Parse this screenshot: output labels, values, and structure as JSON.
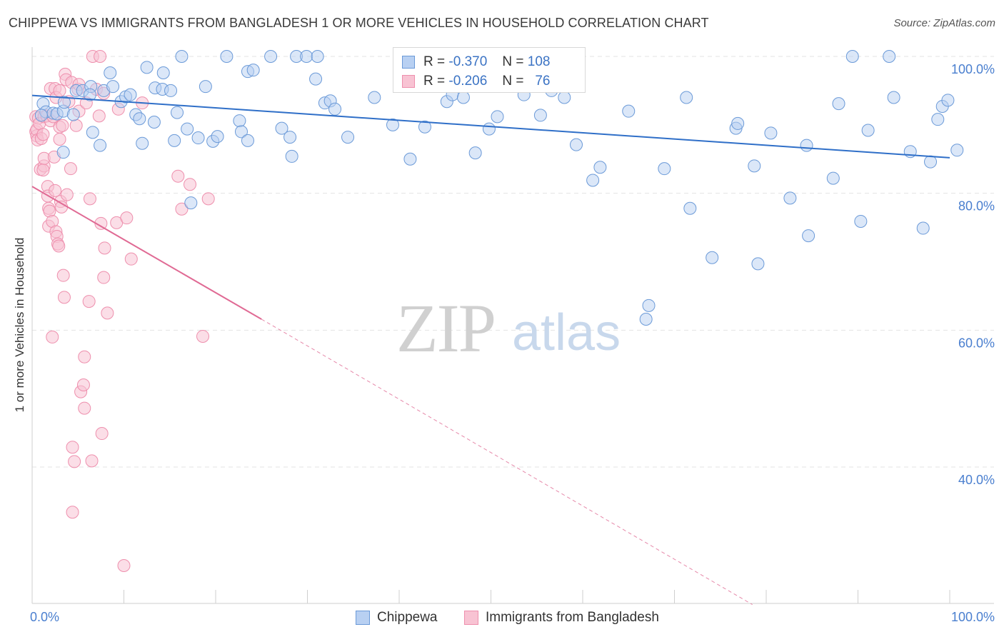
{
  "header": {
    "title": "CHIPPEWA VS IMMIGRANTS FROM BANGLADESH 1 OR MORE VEHICLES IN HOUSEHOLD CORRELATION CHART",
    "source": "Source: ZipAtlas.com"
  },
  "watermark": {
    "zip": "ZIP",
    "atlas": "atlas"
  },
  "legend": {
    "rows": [
      {
        "r_label": "R =",
        "r_value": "-0.370",
        "n_label": "N =",
        "n_value": "108"
      },
      {
        "r_label": "R =",
        "r_value": "-0.206",
        "n_label": "N =",
        "n_value": "76"
      }
    ]
  },
  "colors": {
    "chippewa_fill": "#b8d0f2",
    "chippewa_stroke": "#6b9ad8",
    "chippewa_line": "#2f6fc8",
    "bangladesh_fill": "#f8c3d3",
    "bangladesh_stroke": "#ee8fad",
    "bangladesh_line": "#e06a94",
    "tick_label": "#4a7fcf",
    "grid": "#e3e3e3"
  },
  "chart_data": {
    "type": "scatter",
    "xlabel": "",
    "ylabel": "1 or more Vehicles in Household",
    "xlim": [
      0,
      100
    ],
    "ylim": [
      20,
      100
    ],
    "x_tick_labels": [
      "0.0%",
      "100.0%"
    ],
    "y_ticks": [
      40,
      60,
      80,
      100
    ],
    "y_tick_labels": [
      "40.0%",
      "60.0%",
      "80.0%",
      "100.0%"
    ],
    "grid": true,
    "legend_position": "bottom",
    "series": [
      {
        "name": "Chippewa",
        "trend": {
          "x": [
            0,
            100
          ],
          "y": [
            94.3,
            85.2
          ]
        },
        "points": [
          [
            1.2,
            93.1
          ],
          [
            1.5,
            91.9
          ],
          [
            2.3,
            91.7
          ],
          [
            1.0,
            91.4
          ],
          [
            2.7,
            91.6
          ],
          [
            3.4,
            92.0
          ],
          [
            3.5,
            93.3
          ],
          [
            4.5,
            91.5
          ],
          [
            4.8,
            95.0
          ],
          [
            5.5,
            95.0
          ],
          [
            3.4,
            86.0
          ],
          [
            6.4,
            95.6
          ],
          [
            6.3,
            94.4
          ],
          [
            6.6,
            88.9
          ],
          [
            7.4,
            87.0
          ],
          [
            7.8,
            95.0
          ],
          [
            8.5,
            97.6
          ],
          [
            8.8,
            95.6
          ],
          [
            9.7,
            93.4
          ],
          [
            10.2,
            94.1
          ],
          [
            10.7,
            94.4
          ],
          [
            11.3,
            91.5
          ],
          [
            11.7,
            90.9
          ],
          [
            12.0,
            87.3
          ],
          [
            12.5,
            98.4
          ],
          [
            13.3,
            90.4
          ],
          [
            13.4,
            95.4
          ],
          [
            14.2,
            95.2
          ],
          [
            14.3,
            97.6
          ],
          [
            15.1,
            95.0
          ],
          [
            15.5,
            87.7
          ],
          [
            15.8,
            91.8
          ],
          [
            16.3,
            100.0
          ],
          [
            16.9,
            89.4
          ],
          [
            17.3,
            78.6
          ],
          [
            18.1,
            88.1
          ],
          [
            18.9,
            95.6
          ],
          [
            19.7,
            87.6
          ],
          [
            20.2,
            88.3
          ],
          [
            21.2,
            100.0
          ],
          [
            22.6,
            90.6
          ],
          [
            22.8,
            89.0
          ],
          [
            23.5,
            87.7
          ],
          [
            23.5,
            97.8
          ],
          [
            24.1,
            98.0
          ],
          [
            26.0,
            100.0
          ],
          [
            27.2,
            89.5
          ],
          [
            28.1,
            88.2
          ],
          [
            28.3,
            85.4
          ],
          [
            28.8,
            100.0
          ],
          [
            29.9,
            100.0
          ],
          [
            30.9,
            96.7
          ],
          [
            31.1,
            100.0
          ],
          [
            31.9,
            93.2
          ],
          [
            32.5,
            93.5
          ],
          [
            33.0,
            92.3
          ],
          [
            34.4,
            88.2
          ],
          [
            37.3,
            94.0
          ],
          [
            39.3,
            90.0
          ],
          [
            41.2,
            85.0
          ],
          [
            42.8,
            89.7
          ],
          [
            45.2,
            93.4
          ],
          [
            45.8,
            94.4
          ],
          [
            47.0,
            94.0
          ],
          [
            48.3,
            85.9
          ],
          [
            49.8,
            89.4
          ],
          [
            50.7,
            91.2
          ],
          [
            53.6,
            94.4
          ],
          [
            55.0,
            100.0
          ],
          [
            55.4,
            91.4
          ],
          [
            56.6,
            95.0
          ],
          [
            58.0,
            94.0
          ],
          [
            59.3,
            87.1
          ],
          [
            61.1,
            81.9
          ],
          [
            61.9,
            83.8
          ],
          [
            65.0,
            92.0
          ],
          [
            67.2,
            63.6
          ],
          [
            66.9,
            61.6
          ],
          [
            68.9,
            83.6
          ],
          [
            71.3,
            94.0
          ],
          [
            71.7,
            77.8
          ],
          [
            74.1,
            70.6
          ],
          [
            76.7,
            89.5
          ],
          [
            76.9,
            90.2
          ],
          [
            78.7,
            84.0
          ],
          [
            79.1,
            69.7
          ],
          [
            80.5,
            88.8
          ],
          [
            82.6,
            79.3
          ],
          [
            84.4,
            87.0
          ],
          [
            84.6,
            73.8
          ],
          [
            87.3,
            82.2
          ],
          [
            87.9,
            93.1
          ],
          [
            89.4,
            100.0
          ],
          [
            90.3,
            75.9
          ],
          [
            91.1,
            89.2
          ],
          [
            93.4,
            100.0
          ],
          [
            93.9,
            94.0
          ],
          [
            95.7,
            86.1
          ],
          [
            97.1,
            74.9
          ],
          [
            97.9,
            84.6
          ],
          [
            98.7,
            90.8
          ],
          [
            99.2,
            92.7
          ],
          [
            99.8,
            93.6
          ],
          [
            101.0,
            86.3
          ]
        ]
      },
      {
        "name": "Immigrants from Bangladesh",
        "trend": {
          "x": [
            0,
            25
          ],
          "y": [
            81.0,
            61.6
          ]
        },
        "trend_dashed": {
          "x": [
            25,
            78.5
          ],
          "y": [
            61.6,
            19.9
          ]
        },
        "points": [
          [
            0.4,
            91.2
          ],
          [
            0.4,
            89.0
          ],
          [
            0.5,
            88.4
          ],
          [
            0.5,
            89.3
          ],
          [
            0.6,
            87.8
          ],
          [
            0.7,
            91.0
          ],
          [
            0.8,
            90.2
          ],
          [
            1.0,
            88.0
          ],
          [
            1.2,
            88.6
          ],
          [
            1.3,
            91.2
          ],
          [
            0.9,
            83.5
          ],
          [
            1.3,
            84.0
          ],
          [
            1.2,
            83.4
          ],
          [
            1.3,
            85.1
          ],
          [
            1.6,
            91.3
          ],
          [
            1.7,
            81.0
          ],
          [
            1.8,
            77.8
          ],
          [
            1.8,
            75.2
          ],
          [
            1.7,
            79.6
          ],
          [
            1.9,
            77.4
          ],
          [
            2.0,
            90.6
          ],
          [
            2.0,
            95.3
          ],
          [
            2.2,
            75.9
          ],
          [
            2.2,
            59.0
          ],
          [
            2.3,
            91.2
          ],
          [
            2.4,
            85.3
          ],
          [
            2.5,
            95.3
          ],
          [
            2.5,
            80.4
          ],
          [
            2.6,
            74.4
          ],
          [
            2.6,
            94.0
          ],
          [
            2.7,
            73.7
          ],
          [
            2.8,
            72.6
          ],
          [
            2.9,
            72.3
          ],
          [
            3.0,
            87.9
          ],
          [
            3.0,
            89.7
          ],
          [
            3.0,
            95.0
          ],
          [
            3.1,
            78.8
          ],
          [
            3.2,
            78.0
          ],
          [
            3.3,
            89.9
          ],
          [
            3.4,
            68.0
          ],
          [
            3.5,
            64.8
          ],
          [
            3.6,
            97.4
          ],
          [
            3.7,
            96.6
          ],
          [
            3.8,
            79.8
          ],
          [
            4.0,
            93.4
          ],
          [
            4.2,
            83.6
          ],
          [
            4.3,
            96.2
          ],
          [
            4.4,
            42.9
          ],
          [
            4.4,
            33.4
          ],
          [
            4.6,
            40.8
          ],
          [
            4.8,
            89.9
          ],
          [
            5.0,
            95.2
          ],
          [
            5.1,
            95.9
          ],
          [
            5.1,
            92.0
          ],
          [
            5.3,
            51.0
          ],
          [
            5.6,
            52.0
          ],
          [
            5.7,
            56.1
          ],
          [
            5.7,
            48.6
          ],
          [
            5.9,
            93.2
          ],
          [
            6.2,
            64.2
          ],
          [
            6.3,
            79.2
          ],
          [
            6.5,
            40.9
          ],
          [
            6.6,
            100.0
          ],
          [
            7.0,
            95.2
          ],
          [
            7.3,
            91.3
          ],
          [
            7.4,
            100.0
          ],
          [
            7.5,
            75.6
          ],
          [
            7.6,
            44.9
          ],
          [
            7.8,
            94.6
          ],
          [
            7.9,
            72.0
          ],
          [
            7.8,
            67.7
          ],
          [
            8.2,
            62.5
          ],
          [
            9.2,
            75.7
          ],
          [
            9.4,
            92.3
          ],
          [
            10.0,
            25.6
          ],
          [
            10.3,
            76.4
          ],
          [
            10.8,
            70.4
          ],
          [
            12.0,
            93.2
          ],
          [
            15.9,
            82.5
          ],
          [
            16.3,
            77.7
          ],
          [
            17.2,
            81.3
          ],
          [
            18.6,
            59.1
          ],
          [
            19.2,
            79.2
          ]
        ]
      }
    ]
  }
}
